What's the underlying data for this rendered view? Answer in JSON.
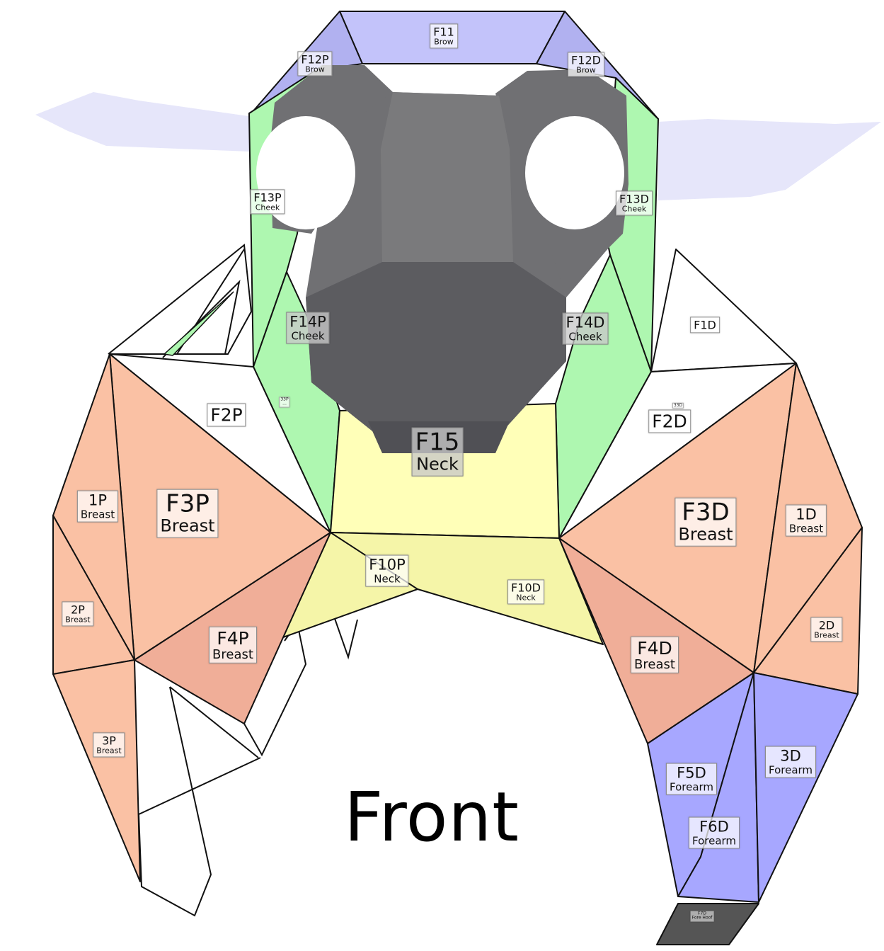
{
  "caption": "Front",
  "colors": {
    "brow": "#c3c3fa",
    "brow_side": "#b1b1f0",
    "cheek": "#aef7b0",
    "neck": "#ffffb8",
    "neck_lower": "#f5f5a8",
    "breast": "#fac1a4",
    "breast_dark": "#f0ae98",
    "forearm": "#a7a7ff",
    "fore_hoof": "#555555",
    "head": "#707073",
    "wing": "#e6e6fa",
    "outline": "#111111"
  },
  "labels": [
    {
      "key": "F11",
      "id": "F11",
      "part": "Brow"
    },
    {
      "key": "F12P",
      "id": "F12P",
      "part": "Brow"
    },
    {
      "key": "F12D",
      "id": "F12D",
      "part": "Brow"
    },
    {
      "key": "F13P",
      "id": "F13P",
      "part": "Cheek"
    },
    {
      "key": "F13D",
      "id": "F13D",
      "part": "Cheek"
    },
    {
      "key": "F14P",
      "id": "F14P",
      "part": "Cheek"
    },
    {
      "key": "F14D",
      "id": "F14D",
      "part": "Cheek"
    },
    {
      "key": "F1D",
      "id": "F1D",
      "part": ""
    },
    {
      "key": "F2P",
      "id": "F2P",
      "part": ""
    },
    {
      "key": "F2D",
      "id": "F2D",
      "part": ""
    },
    {
      "key": "33P",
      "id": "33P",
      "part": "..."
    },
    {
      "key": "33D",
      "id": "33D",
      "part": ""
    },
    {
      "key": "F15",
      "id": "F15",
      "part": "Neck"
    },
    {
      "key": "1P",
      "id": "1P",
      "part": "Breast"
    },
    {
      "key": "F3P",
      "id": "F3P",
      "part": "Breast"
    },
    {
      "key": "F3D",
      "id": "F3D",
      "part": "Breast"
    },
    {
      "key": "1D",
      "id": "1D",
      "part": "Breast"
    },
    {
      "key": "F10P",
      "id": "F10P",
      "part": "Neck"
    },
    {
      "key": "F10D",
      "id": "F10D",
      "part": "Neck"
    },
    {
      "key": "2P",
      "id": "2P",
      "part": "Breast"
    },
    {
      "key": "2D",
      "id": "2D",
      "part": "Breast"
    },
    {
      "key": "F4P",
      "id": "F4P",
      "part": "Breast"
    },
    {
      "key": "F4D",
      "id": "F4D",
      "part": "Breast"
    },
    {
      "key": "3P",
      "id": "3P",
      "part": "Breast"
    },
    {
      "key": "3D",
      "id": "3D",
      "part": "Forearm"
    },
    {
      "key": "F5D",
      "id": "F5D",
      "part": "Forearm"
    },
    {
      "key": "F6D",
      "id": "F6D",
      "part": "Forearm"
    },
    {
      "key": "F7D",
      "id": "F7D",
      "part": "Fore Hoof"
    }
  ]
}
